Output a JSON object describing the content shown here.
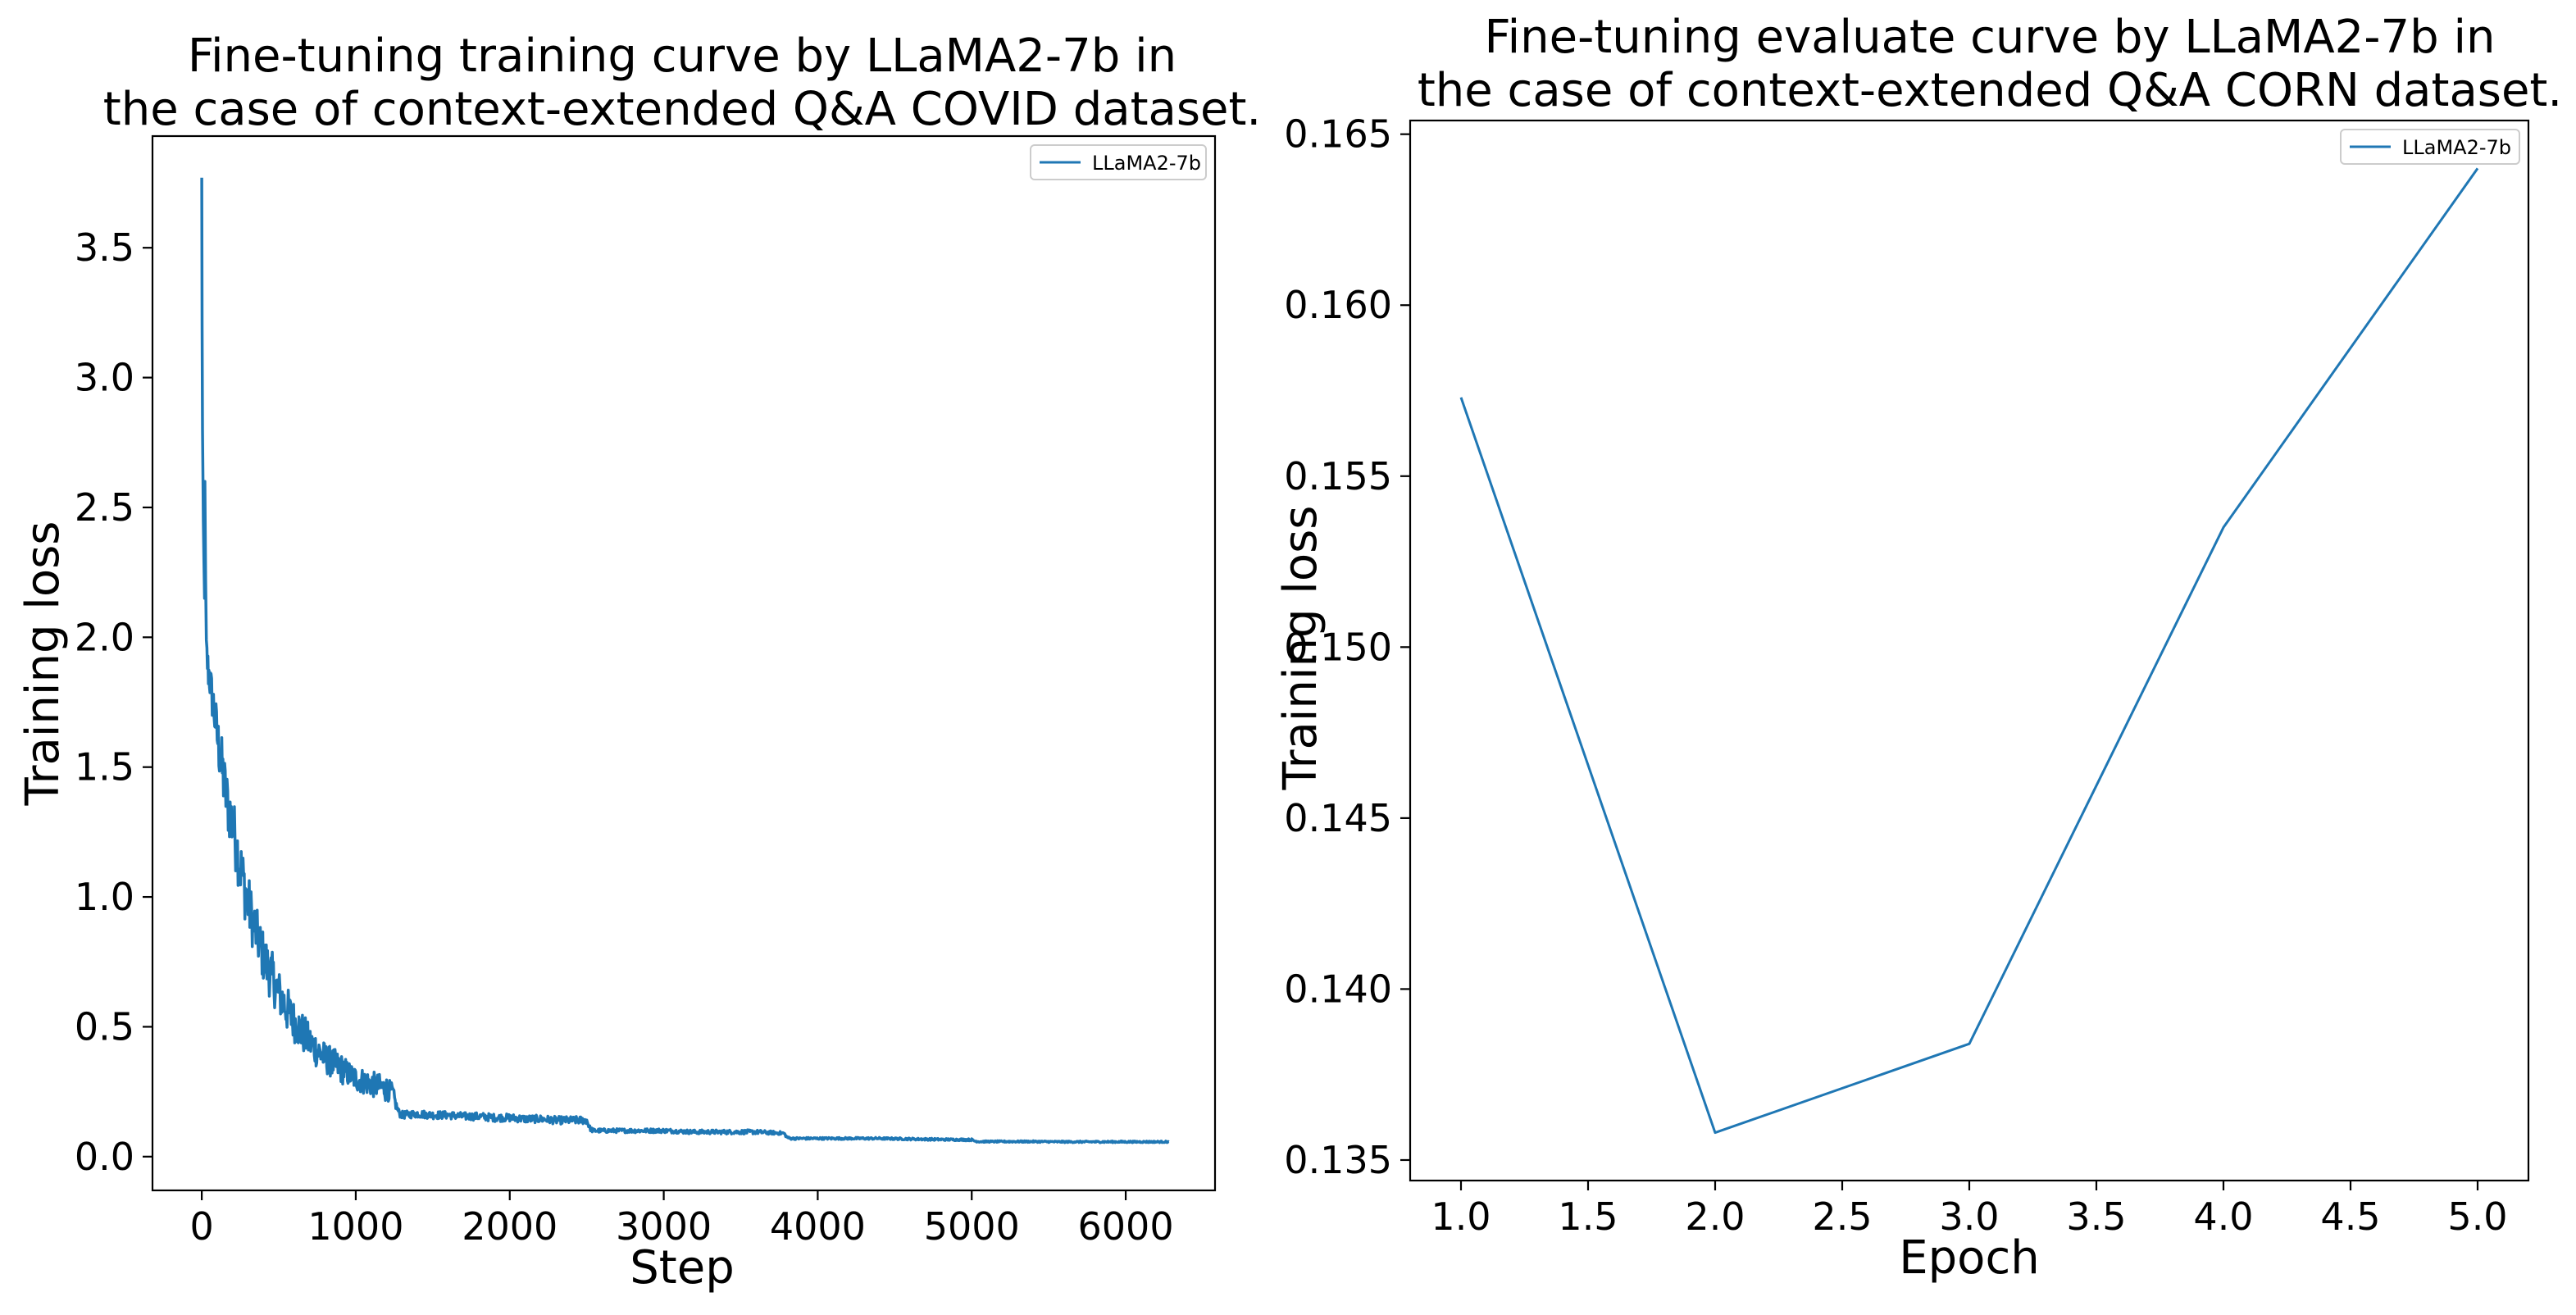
{
  "colors": {
    "series": "#1f77b4"
  },
  "chart_data": [
    {
      "type": "line",
      "title_lines": [
        "Fine-tuning training curve by LLaMA2-7b in",
        "the case of context-extended Q&A COVID dataset."
      ],
      "xlabel": "Step",
      "ylabel": "Training loss",
      "xlim": [
        -320,
        6580
      ],
      "ylim": [
        -0.13,
        3.93
      ],
      "xticks": [
        0,
        1000,
        2000,
        3000,
        4000,
        5000,
        6000
      ],
      "xtick_labels": [
        "0",
        "1000",
        "2000",
        "3000",
        "4000",
        "5000",
        "6000"
      ],
      "yticks": [
        0.0,
        0.5,
        1.0,
        1.5,
        2.0,
        2.5,
        3.0,
        3.5
      ],
      "ytick_labels": [
        "0.0",
        "0.5",
        "1.0",
        "1.5",
        "2.0",
        "2.5",
        "3.0",
        "3.5"
      ],
      "legend": {
        "entries": [
          "LLaMA2-7b"
        ],
        "position": "upper right"
      },
      "series": [
        {
          "name": "LLaMA2-7b",
          "x": [
            0,
            2,
            5,
            8,
            10,
            14,
            18,
            20,
            25,
            30,
            40,
            50,
            60,
            80,
            100,
            130,
            160,
            200,
            240,
            280,
            320,
            360,
            400,
            450,
            500,
            550,
            600,
            650,
            700,
            750,
            800,
            850,
            900,
            950,
            1000,
            1050,
            1100,
            1150,
            1200,
            1240,
            1260,
            1280,
            1300,
            1400,
            1500,
            1600,
            1700,
            1800,
            1900,
            2000,
            2100,
            2200,
            2300,
            2400,
            2500,
            2520,
            2540,
            2600,
            2800,
            3000,
            3200,
            3400,
            3600,
            3780,
            3800,
            3820,
            4000,
            4200,
            4400,
            4600,
            4800,
            5000,
            5020,
            5040,
            5200,
            5400,
            5600,
            5800,
            6000,
            6200,
            6280
          ],
          "y": [
            3.77,
            3.2,
            2.8,
            2.6,
            2.45,
            2.3,
            2.15,
            2.6,
            2.2,
            1.95,
            1.88,
            1.85,
            1.8,
            1.72,
            1.62,
            1.5,
            1.38,
            1.28,
            1.15,
            1.03,
            0.93,
            0.85,
            0.77,
            0.7,
            0.63,
            0.57,
            0.52,
            0.48,
            0.44,
            0.41,
            0.38,
            0.36,
            0.34,
            0.32,
            0.3,
            0.29,
            0.28,
            0.27,
            0.26,
            0.25,
            0.2,
            0.17,
            0.16,
            0.165,
            0.16,
            0.16,
            0.155,
            0.155,
            0.15,
            0.15,
            0.145,
            0.145,
            0.14,
            0.14,
            0.14,
            0.11,
            0.1,
            0.1,
            0.1,
            0.1,
            0.095,
            0.095,
            0.095,
            0.09,
            0.075,
            0.07,
            0.07,
            0.07,
            0.07,
            0.068,
            0.066,
            0.065,
            0.06,
            0.058,
            0.058,
            0.058,
            0.057,
            0.057,
            0.057,
            0.057,
            0.057
          ],
          "noise_amplitude": [
            0,
            0,
            0,
            0,
            0,
            0,
            0,
            0,
            0.05,
            0.06,
            0.08,
            0.08,
            0.08,
            0.1,
            0.1,
            0.12,
            0.12,
            0.12,
            0.12,
            0.12,
            0.11,
            0.1,
            0.1,
            0.1,
            0.09,
            0.09,
            0.08,
            0.08,
            0.07,
            0.07,
            0.06,
            0.06,
            0.06,
            0.05,
            0.05,
            0.05,
            0.05,
            0.05,
            0.05,
            0.03,
            0.02,
            0.015,
            0.015,
            0.015,
            0.015,
            0.015,
            0.015,
            0.015,
            0.015,
            0.015,
            0.015,
            0.015,
            0.015,
            0.015,
            0.015,
            0.01,
            0.008,
            0.008,
            0.008,
            0.008,
            0.008,
            0.008,
            0.008,
            0.006,
            0.004,
            0.004,
            0.004,
            0.004,
            0.004,
            0.004,
            0.004,
            0.004,
            0.003,
            0.003,
            0.003,
            0.003,
            0.003,
            0.003,
            0.003,
            0.003,
            0.003
          ]
        }
      ]
    },
    {
      "type": "line",
      "title_lines": [
        "Fine-tuning evaluate curve by LLaMA2-7b in",
        "the case of context-extended Q&A CORN dataset."
      ],
      "xlabel": "Epoch",
      "ylabel": "Training loss",
      "xlim": [
        0.8,
        5.2
      ],
      "ylim": [
        0.1344,
        0.1654
      ],
      "xticks": [
        1.0,
        1.5,
        2.0,
        2.5,
        3.0,
        3.5,
        4.0,
        4.5,
        5.0
      ],
      "xtick_labels": [
        "1.0",
        "1.5",
        "2.0",
        "2.5",
        "3.0",
        "3.5",
        "4.0",
        "4.5",
        "5.0"
      ],
      "yticks": [
        0.135,
        0.14,
        0.145,
        0.15,
        0.155,
        0.16,
        0.165
      ],
      "ytick_labels": [
        "0.135",
        "0.140",
        "0.145",
        "0.150",
        "0.155",
        "0.160",
        "0.165"
      ],
      "legend": {
        "entries": [
          "LLaMA2-7b"
        ],
        "position": "upper right"
      },
      "series": [
        {
          "name": "LLaMA2-7b",
          "x": [
            1,
            2,
            3,
            4,
            5
          ],
          "y": [
            0.1573,
            0.1358,
            0.1384,
            0.1535,
            0.164
          ]
        }
      ]
    }
  ]
}
